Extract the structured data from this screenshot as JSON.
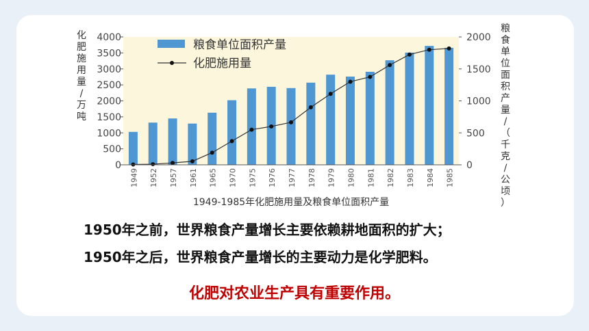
{
  "chart_data": {
    "type": "bar",
    "title": "1949-1985年化肥施用量及粮食单位面积产量",
    "categories": [
      "1949",
      "1952",
      "1957",
      "1961",
      "1965",
      "1970",
      "1975",
      "1976",
      "1977",
      "1978",
      "1979",
      "1980",
      "1981",
      "1982",
      "1983",
      "1984",
      "1985"
    ],
    "series": [
      {
        "name": "粮食单位面积产量",
        "type": "bar",
        "axis": "right",
        "values": [
          515,
          660,
          725,
          645,
          815,
          1010,
          1195,
          1220,
          1200,
          1285,
          1410,
          1380,
          1455,
          1635,
          1755,
          1860,
          1830
        ]
      },
      {
        "name": "化肥施用量",
        "type": "line",
        "axis": "left",
        "values": [
          10,
          20,
          60,
          110,
          380,
          740,
          1100,
          1200,
          1330,
          1800,
          2220,
          2600,
          2750,
          3120,
          3450,
          3600,
          3640
        ]
      }
    ],
    "ylabel_left": "化肥施用量/万吨",
    "ylabel_right": "粮食单位面积产量/（千克/公顷）",
    "ylim_left": [
      0,
      4000
    ],
    "yticks_left": [
      "0",
      "500",
      "1000",
      "1500",
      "2000",
      "2500",
      "3000",
      "3500",
      "4000"
    ],
    "ylim_right": [
      0,
      2000
    ],
    "yticks_right": [
      "0",
      "500",
      "1000",
      "1500",
      "2000"
    ],
    "legend_position": "top-left",
    "grid": false
  },
  "text": {
    "line1": "1950年之前，世界粮食产量增长主要依赖耕地面积的扩大；",
    "line2": "1950年之后，世界粮食产量增长的主要动力是化学肥料。",
    "highlight": "化肥对农业生产具有重要作用。"
  },
  "colors": {
    "bar": "#4f97d3",
    "line": "#333333",
    "plot_background": "#fbf6dc",
    "highlight_text": "#c00000",
    "page_background": "#e9f0f8"
  }
}
